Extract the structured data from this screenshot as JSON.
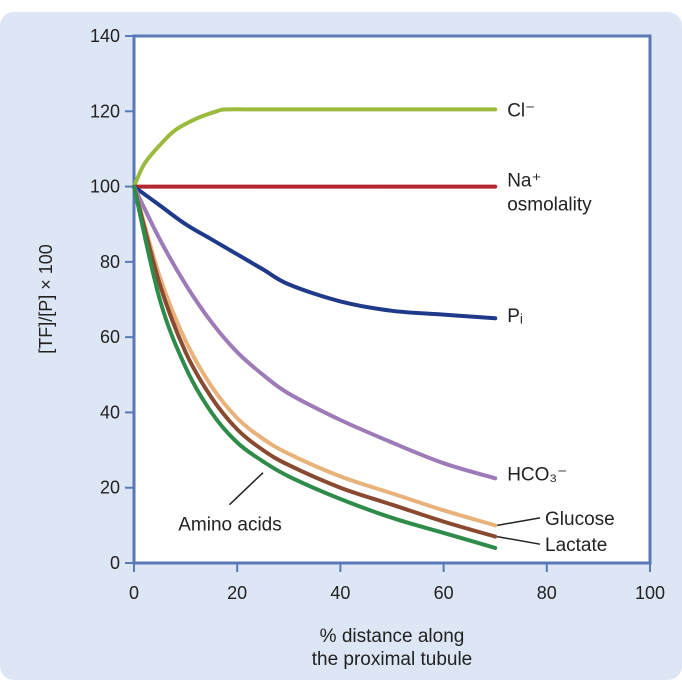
{
  "chart_data": {
    "type": "line",
    "title": "",
    "xlabel_lines": [
      "% distance along",
      "the proximal tubule"
    ],
    "ylabel": "[TF]/[P] × 100",
    "xlim": [
      0,
      100
    ],
    "ylim": [
      0,
      140
    ],
    "x_ticks": [
      0,
      20,
      40,
      60,
      80,
      100
    ],
    "y_ticks": [
      0,
      20,
      40,
      60,
      80,
      100,
      120,
      140
    ],
    "grid": false,
    "legend": "labels at line ends",
    "colors": {
      "panel_background": "#dde6f4",
      "plot_background": "#ffffff",
      "axis": "#5a78b8"
    },
    "series": [
      {
        "name": "Cl⁻",
        "color": "#9bbb3c",
        "x": [
          0,
          2,
          5,
          8,
          12,
          16,
          18,
          25,
          40,
          55,
          70
        ],
        "y": [
          100,
          106,
          111,
          115,
          118,
          120,
          120.5,
          120.5,
          120.5,
          120.5,
          120.5
        ]
      },
      {
        "name": "Na⁺ osmolality",
        "label_lines": [
          "Na⁺",
          "osmolality"
        ],
        "color": "#b5262f",
        "x": [
          0,
          70
        ],
        "y": [
          100,
          100
        ]
      },
      {
        "name": "Pᵢ",
        "color": "#1f3a8a",
        "x": [
          0,
          5,
          10,
          15,
          20,
          25,
          30,
          40,
          50,
          60,
          70
        ],
        "y": [
          100,
          95,
          90,
          86,
          82,
          78,
          74,
          69.5,
          67,
          66,
          65
        ]
      },
      {
        "name": "HCO₃⁻",
        "color": "#9d7ab8",
        "x": [
          0,
          5,
          10,
          15,
          20,
          25,
          30,
          40,
          50,
          60,
          70
        ],
        "y": [
          100,
          86,
          74,
          64,
          56,
          50,
          45,
          38,
          32,
          26.5,
          22.5
        ]
      },
      {
        "name": "Glucose",
        "color": "#e8b27a",
        "x": [
          0,
          5,
          10,
          15,
          20,
          25,
          30,
          40,
          50,
          60,
          70
        ],
        "y": [
          100,
          76,
          59,
          47,
          38.5,
          33,
          29,
          23,
          18.5,
          14,
          10
        ]
      },
      {
        "name": "Lactate",
        "color": "#8a4a32",
        "x": [
          0,
          5,
          10,
          15,
          20,
          25,
          30,
          40,
          50,
          60,
          70
        ],
        "y": [
          100,
          74,
          56,
          44,
          35.5,
          30,
          26,
          20,
          15.5,
          11,
          7
        ]
      },
      {
        "name": "Amino acids",
        "color": "#2e8b4a",
        "x": [
          0,
          5,
          10,
          15,
          20,
          25,
          30,
          40,
          50,
          60,
          70
        ],
        "y": [
          100,
          70,
          52,
          40,
          32,
          27,
          23,
          17,
          12,
          8,
          4
        ]
      }
    ],
    "annotations": {
      "amino_acids": "Amino acids",
      "glucose": "Glucose",
      "lactate": "Lactate"
    }
  }
}
